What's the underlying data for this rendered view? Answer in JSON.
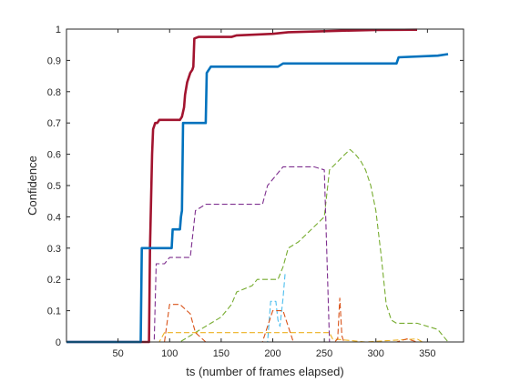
{
  "chart_data": {
    "type": "line",
    "xlabel": "ts (number of frames elapsed)",
    "ylabel": "Confidence",
    "xlim": [
      0,
      385
    ],
    "ylim": [
      0,
      1
    ],
    "xticks": [
      50,
      100,
      150,
      200,
      250,
      300,
      350
    ],
    "yticks": [
      0,
      0.1,
      0.2,
      0.3,
      0.4,
      0.5,
      0.6,
      0.7,
      0.8,
      0.9,
      1
    ],
    "ytick_labels": [
      "0",
      "0.1",
      "0.2",
      "0.3",
      "0.4",
      "0.5",
      "0.6",
      "0.7",
      "0.8",
      "0.9",
      "1"
    ],
    "grid": false,
    "series": [
      {
        "color": "#A2142F",
        "style": "solid",
        "x": [
          0,
          80,
          81,
          83,
          84,
          85,
          86,
          88,
          90,
          110,
          112,
          114,
          115,
          117,
          120,
          122,
          123,
          124,
          128,
          160,
          165,
          200,
          215,
          270,
          300,
          340
        ],
        "y": [
          0,
          0,
          0.3,
          0.6,
          0.68,
          0.69,
          0.7,
          0.7,
          0.71,
          0.71,
          0.72,
          0.75,
          0.79,
          0.83,
          0.86,
          0.87,
          0.88,
          0.97,
          0.975,
          0.975,
          0.98,
          0.985,
          0.99,
          0.995,
          0.997,
          0.998
        ]
      },
      {
        "color": "#0072BD",
        "style": "solid",
        "x": [
          0,
          72,
          73,
          102,
          103,
          110,
          111,
          112,
          113,
          115,
          135,
          136,
          138,
          140,
          165,
          205,
          210,
          250,
          320,
          322,
          360,
          370
        ],
        "y": [
          0,
          0,
          0.3,
          0.3,
          0.36,
          0.36,
          0.4,
          0.42,
          0.7,
          0.7,
          0.7,
          0.86,
          0.87,
          0.88,
          0.88,
          0.88,
          0.89,
          0.89,
          0.89,
          0.91,
          0.915,
          0.92
        ]
      },
      {
        "color": "#77AC30",
        "style": "dashed",
        "x": [
          0,
          110,
          120,
          130,
          140,
          150,
          160,
          165,
          180,
          185,
          205,
          210,
          215,
          225,
          250,
          255,
          270,
          275,
          280,
          285,
          290,
          295,
          300,
          305,
          310,
          315,
          320,
          330,
          340,
          350,
          360,
          370
        ],
        "y": [
          0,
          0,
          0.02,
          0.04,
          0.06,
          0.08,
          0.12,
          0.16,
          0.18,
          0.2,
          0.2,
          0.24,
          0.3,
          0.32,
          0.4,
          0.55,
          0.6,
          0.615,
          0.6,
          0.58,
          0.55,
          0.5,
          0.42,
          0.28,
          0.12,
          0.07,
          0.06,
          0.06,
          0.06,
          0.05,
          0.04,
          0
        ]
      },
      {
        "color": "#7E2F8E",
        "style": "dashed",
        "x": [
          0,
          85,
          87,
          95,
          100,
          110,
          120,
          125,
          130,
          135,
          170,
          175,
          190,
          195,
          210,
          215,
          240,
          245,
          250,
          255
        ],
        "y": [
          0,
          0,
          0.25,
          0.25,
          0.27,
          0.27,
          0.27,
          0.42,
          0.43,
          0.44,
          0.44,
          0.44,
          0.44,
          0.5,
          0.56,
          0.56,
          0.56,
          0.555,
          0.55,
          0
        ]
      },
      {
        "color": "#EDB120",
        "style": "dashed",
        "x": [
          0,
          90,
          95,
          130,
          160,
          220,
          255,
          258,
          290,
          340,
          345
        ],
        "y": [
          0,
          0,
          0.03,
          0.03,
          0.03,
          0.03,
          0.03,
          0.01,
          0,
          0.01,
          0
        ]
      },
      {
        "color": "#4DBEEE",
        "style": "dashed",
        "x": [
          0,
          195,
          198,
          203,
          205,
          207,
          210,
          212
        ],
        "y": [
          0,
          0,
          0.13,
          0.13,
          0.07,
          0.05,
          0.14,
          0.22
        ]
      },
      {
        "color": "#D95319",
        "style": "dashed",
        "x": [
          0,
          95,
          100,
          110,
          120,
          125,
          135,
          190,
          195,
          200,
          210,
          220,
          250,
          260,
          263,
          265,
          267,
          269,
          300,
          320,
          330,
          340
        ],
        "y": [
          0,
          0,
          0.12,
          0.12,
          0.09,
          0.03,
          0,
          0,
          0.05,
          0.1,
          0.1,
          0,
          0,
          0,
          0.01,
          0.14,
          0.02,
          0,
          0,
          0,
          0.01,
          0
        ]
      }
    ]
  }
}
